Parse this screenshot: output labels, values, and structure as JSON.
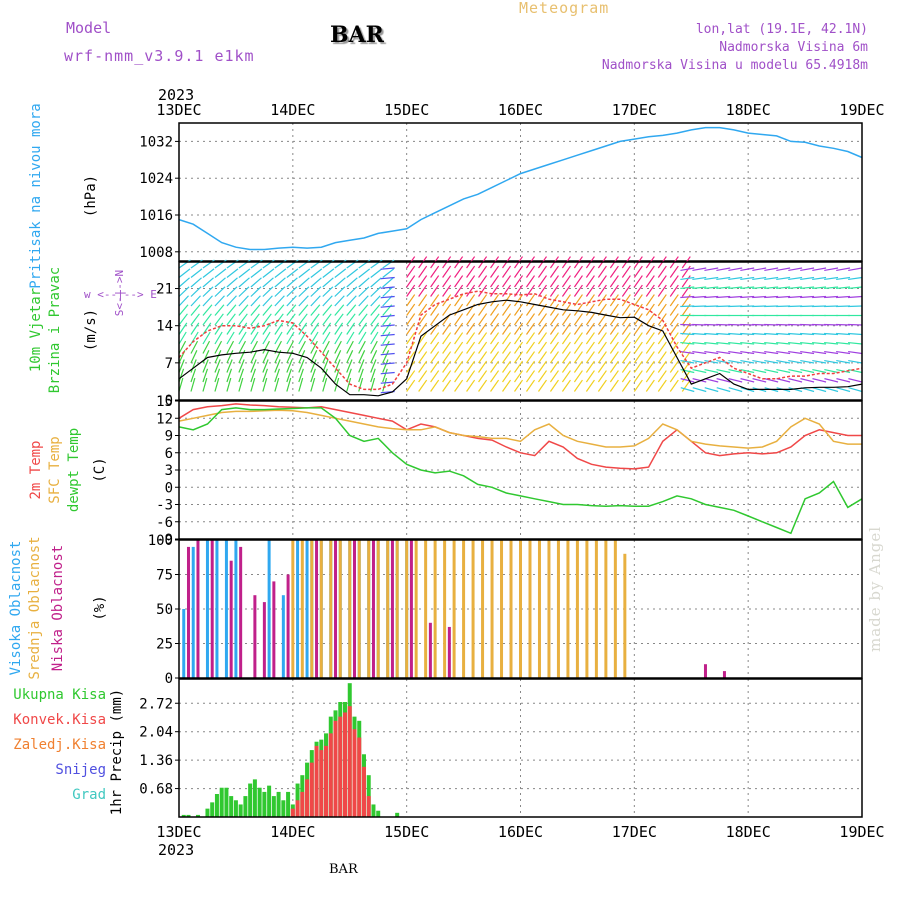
{
  "header": {
    "model_label": "Model",
    "model_name": "wrf-nmm_v3.9.1 e1km",
    "title": "Meteogram",
    "station": "BAR",
    "lonlat": "lon,lat (19.1E, 42.1N)",
    "altitude": "Nadmorska Visina 6m",
    "altitude_model": "Nadmorska Visina u modelu 65.4918m"
  },
  "footer": {
    "station": "BAR",
    "credit": "made by Angel"
  },
  "time_axis": {
    "year": "2023",
    "labels": [
      "13DEC",
      "14DEC",
      "15DEC",
      "16DEC",
      "17DEC",
      "18DEC",
      "19DEC"
    ],
    "range_hours": [
      0,
      144
    ]
  },
  "colors": {
    "pressure": "#30a8f0",
    "wind_speed": "#000000",
    "wind_gust": "#f04040",
    "temp_2m": "#f04848",
    "temp_sfc": "#e8b040",
    "dewpoint": "#30c830",
    "cloud_high": "#30a8f0",
    "cloud_mid": "#e8b040",
    "cloud_low": "#c0208a",
    "precip_total": "#30c830",
    "precip_conv": "#f04848",
    "precip_freezing": "#f08030",
    "precip_snow": "#5050e0",
    "precip_hail": "#40c8c0",
    "wind_purple": "#a050c8"
  },
  "chart_data": [
    {
      "type": "line",
      "name": "pressure",
      "ylabel_left": "Pritisak na nivou mora",
      "unit": "(hPa)",
      "ylim": [
        1006,
        1036
      ],
      "yticks": [
        1008,
        1016,
        1024,
        1032
      ],
      "grid": true,
      "series": [
        {
          "key": "pressure",
          "x": [
            0,
            3,
            6,
            9,
            12,
            15,
            18,
            21,
            24,
            27,
            30,
            33,
            36,
            39,
            42,
            45,
            48,
            51,
            54,
            57,
            60,
            63,
            66,
            69,
            72,
            75,
            78,
            81,
            84,
            87,
            90,
            93,
            96,
            99,
            102,
            105,
            108,
            111,
            114,
            117,
            120,
            123,
            126,
            129,
            132,
            135,
            138,
            141,
            144
          ],
          "values": [
            1015,
            1014,
            1012,
            1010,
            1009,
            1008.5,
            1008.5,
            1008.8,
            1009,
            1008.8,
            1009,
            1010,
            1010.5,
            1011,
            1012,
            1012.5,
            1013,
            1015,
            1016.5,
            1018,
            1019.5,
            1020.5,
            1022,
            1023.5,
            1025,
            1026,
            1027,
            1028,
            1029,
            1030,
            1031,
            1032,
            1032.5,
            1033,
            1033.3,
            1033.8,
            1034.5,
            1035,
            1035,
            1034.5,
            1033.8,
            1033.5,
            1033.2,
            1032,
            1031.8,
            1031,
            1030.5,
            1029.8,
            1028.5
          ]
        }
      ]
    },
    {
      "type": "line",
      "name": "wind",
      "ylabel_left": "10m Vjetar",
      "ylabel_left2": "Brzina i Pravac",
      "unit": "(m/s)",
      "compass": "w <--|--> E",
      "compass_side": "S<-|->N",
      "ylim": [
        0,
        26
      ],
      "yticks": [
        0,
        7,
        14,
        21
      ],
      "grid": true,
      "series": [
        {
          "key": "wind_speed",
          "x": [
            0,
            3,
            6,
            9,
            12,
            15,
            18,
            21,
            24,
            27,
            30,
            33,
            36,
            39,
            42,
            45,
            48,
            51,
            54,
            57,
            60,
            63,
            66,
            69,
            72,
            75,
            78,
            81,
            84,
            87,
            90,
            93,
            96,
            99,
            102,
            105,
            108,
            111,
            114,
            117,
            120,
            123,
            126,
            129,
            132,
            135,
            138,
            141,
            144
          ],
          "values": [
            4,
            6,
            8,
            8.5,
            8.8,
            9,
            9.5,
            9,
            8.8,
            8,
            6,
            3,
            1,
            1,
            0.8,
            1.5,
            4,
            12,
            14,
            16,
            17,
            18,
            18.5,
            18.8,
            18.5,
            18,
            17.5,
            17,
            16.8,
            16.5,
            16,
            15.5,
            15.6,
            14,
            13,
            8,
            3,
            4,
            5,
            3,
            2,
            2,
            2,
            2,
            2.3,
            2.4,
            2.4,
            2.5,
            3
          ]
        },
        {
          "key": "wind_gust",
          "x": [
            0,
            3,
            6,
            9,
            12,
            15,
            18,
            21,
            24,
            27,
            30,
            33,
            36,
            39,
            42,
            45,
            48,
            51,
            54,
            57,
            60,
            63,
            66,
            69,
            72,
            75,
            78,
            81,
            84,
            87,
            90,
            93,
            96,
            99,
            102,
            105,
            108,
            111,
            114,
            117,
            120,
            123,
            126,
            129,
            132,
            135,
            138,
            141,
            144
          ],
          "values": [
            8,
            11,
            13,
            14,
            14,
            13.5,
            14,
            15,
            14.5,
            12,
            9,
            6,
            3,
            2,
            2,
            3,
            7,
            16,
            18,
            19,
            20,
            20.5,
            20,
            20,
            19.8,
            20,
            19,
            18.5,
            18,
            18.5,
            19,
            19,
            18,
            17,
            15,
            10,
            6,
            7,
            8,
            6,
            5,
            4,
            4,
            4.5,
            4.5,
            5,
            5,
            5.5,
            6
          ]
        }
      ],
      "barbs_note": "dense multi-colored wind direction vectors"
    },
    {
      "type": "line",
      "name": "temperature",
      "ylabel_lines": [
        "2m Temp",
        "SFC Temp",
        "dewpt Temp"
      ],
      "unit": "(C)",
      "ylim": [
        -9,
        15
      ],
      "yticks": [
        -9,
        -6,
        -3,
        0,
        3,
        6,
        9,
        12,
        15
      ],
      "grid": true,
      "series": [
        {
          "key": "temp_2m",
          "x": [
            0,
            3,
            6,
            9,
            12,
            15,
            18,
            21,
            24,
            27,
            30,
            33,
            36,
            39,
            42,
            45,
            48,
            51,
            54,
            57,
            60,
            63,
            66,
            69,
            72,
            75,
            78,
            81,
            84,
            87,
            90,
            93,
            96,
            99,
            102,
            105,
            108,
            111,
            114,
            117,
            120,
            123,
            126,
            129,
            132,
            135,
            138,
            141,
            144
          ],
          "values": [
            12,
            13.5,
            14,
            14.2,
            14.5,
            14.3,
            14.2,
            14,
            13.9,
            13.8,
            14,
            13.5,
            13,
            12.5,
            12,
            11.5,
            10,
            11,
            10.5,
            9.5,
            9,
            8.5,
            8.2,
            7,
            6,
            5.5,
            8,
            7,
            5,
            4,
            3.5,
            3.3,
            3.2,
            3.5,
            8,
            10,
            8,
            6,
            5.5,
            5.8,
            6,
            5.8,
            6,
            7,
            9,
            10,
            9.5,
            9,
            9
          ]
        },
        {
          "key": "temp_sfc",
          "x": [
            0,
            3,
            6,
            9,
            12,
            15,
            18,
            21,
            24,
            27,
            30,
            33,
            36,
            39,
            42,
            45,
            48,
            51,
            54,
            57,
            60,
            63,
            66,
            69,
            72,
            75,
            78,
            81,
            84,
            87,
            90,
            93,
            96,
            99,
            102,
            105,
            108,
            111,
            114,
            117,
            120,
            123,
            126,
            129,
            132,
            135,
            138,
            141,
            144
          ],
          "values": [
            11.5,
            12,
            12.5,
            13,
            13.2,
            13.2,
            13.3,
            13.4,
            13.3,
            13,
            12.5,
            12,
            11.5,
            11,
            10.5,
            10.2,
            10,
            10,
            10.5,
            9.5,
            9,
            8.8,
            8.5,
            8.5,
            8,
            10,
            11,
            9,
            8,
            7.5,
            7,
            7,
            7.2,
            8.5,
            11,
            10,
            8,
            7.5,
            7.2,
            7,
            6.8,
            7,
            8,
            10.5,
            12,
            11,
            8,
            7.5,
            7.5
          ]
        },
        {
          "key": "dewpoint",
          "x": [
            0,
            3,
            6,
            9,
            12,
            15,
            18,
            21,
            24,
            27,
            30,
            33,
            36,
            39,
            42,
            45,
            48,
            51,
            54,
            57,
            60,
            63,
            66,
            69,
            72,
            75,
            78,
            81,
            84,
            87,
            90,
            93,
            96,
            99,
            102,
            105,
            108,
            111,
            114,
            117,
            120,
            123,
            126,
            129,
            132,
            135,
            138,
            141,
            144
          ],
          "values": [
            10.5,
            10,
            11,
            13.5,
            13.8,
            13.5,
            13.5,
            13.6,
            13.7,
            13.8,
            13.8,
            12,
            9,
            8,
            8.5,
            6,
            4,
            3,
            2.5,
            2.8,
            2,
            0.5,
            0,
            -1,
            -1.5,
            -2,
            -2.5,
            -3,
            -3,
            -3.2,
            -3.3,
            -3.2,
            -3.3,
            -3.3,
            -2.5,
            -1.5,
            -2,
            -3,
            -3.5,
            -4,
            -5,
            -6,
            -7,
            -8,
            -2,
            -1,
            1,
            -3.5,
            -2
          ]
        }
      ]
    },
    {
      "type": "bar",
      "name": "cloud_cover",
      "ylabel_lines": [
        "Visoka Oblacnost",
        "Srednja Oblacnost",
        "Niska Oblacnost"
      ],
      "unit": "(%)",
      "ylim": [
        0,
        100
      ],
      "yticks": [
        0,
        25,
        50,
        75,
        100
      ],
      "grid": true,
      "series": [
        {
          "key": "cloud_high",
          "x": [
            1,
            3,
            6,
            8,
            10,
            12,
            19,
            22,
            25,
            27,
            28,
            30,
            32,
            34,
            36,
            38,
            40,
            42,
            44,
            46,
            48
          ],
          "values": [
            50,
            95,
            100,
            100,
            100,
            100,
            100,
            60,
            100,
            100,
            100,
            100,
            100,
            100,
            100,
            100,
            100,
            100,
            100,
            100,
            100
          ]
        },
        {
          "key": "cloud_mid",
          "x": [
            24,
            26,
            28,
            30,
            32,
            34,
            36,
            38,
            40,
            42,
            44,
            46,
            48,
            50,
            52,
            54,
            56,
            58,
            60,
            62,
            64,
            66,
            68,
            70,
            72,
            74,
            76,
            78,
            80,
            82,
            84,
            86,
            88,
            90,
            92,
            94
          ],
          "values": [
            100,
            100,
            100,
            100,
            100,
            100,
            100,
            100,
            100,
            100,
            100,
            100,
            100,
            100,
            100,
            100,
            100,
            100,
            100,
            100,
            100,
            100,
            100,
            100,
            100,
            100,
            100,
            100,
            100,
            100,
            100,
            100,
            100,
            100,
            100,
            90
          ]
        },
        {
          "key": "cloud_low",
          "x": [
            2,
            4,
            7,
            11,
            13,
            16,
            18,
            20,
            23,
            29,
            33,
            37,
            41,
            45,
            49,
            53,
            57,
            111,
            115
          ],
          "values": [
            95,
            100,
            100,
            85,
            95,
            60,
            55,
            70,
            75,
            100,
            100,
            100,
            100,
            100,
            100,
            40,
            37,
            10,
            5
          ]
        }
      ]
    },
    {
      "type": "bar",
      "name": "precipitation",
      "ylabel_lines": [
        "Ukupna Kisa",
        "Konvek.Kisa",
        "Zaledj.Kisa",
        "Snijeg",
        "Grad"
      ],
      "unit": "1hr Precip (mm)",
      "ylim": [
        0,
        3.3
      ],
      "yticks": [
        0.68,
        1.36,
        2.04,
        2.72
      ],
      "ytick_labels": [
        "0.68",
        "1.36",
        "2.04",
        "2.72"
      ],
      "grid": true,
      "series": [
        {
          "key": "precip_total",
          "x": [
            1,
            2,
            4,
            6,
            7,
            8,
            9,
            10,
            11,
            12,
            13,
            14,
            15,
            16,
            17,
            18,
            19,
            20,
            21,
            22,
            23,
            24,
            25,
            26,
            27,
            28,
            29,
            30,
            31,
            32,
            33,
            34,
            35,
            36,
            37,
            38,
            39,
            40,
            41,
            42,
            46
          ],
          "values": [
            0.05,
            0.05,
            0.05,
            0.2,
            0.35,
            0.55,
            0.7,
            0.7,
            0.5,
            0.4,
            0.3,
            0.5,
            0.8,
            0.9,
            0.7,
            0.6,
            0.75,
            0.5,
            0.6,
            0.4,
            0.6,
            0.3,
            0.8,
            1.0,
            1.3,
            1.6,
            1.8,
            1.85,
            2.0,
            2.4,
            2.55,
            2.75,
            2.75,
            3.2,
            2.4,
            2.3,
            1.5,
            1.0,
            0.3,
            0.15,
            0.1
          ]
        },
        {
          "key": "precip_conv",
          "x": [
            24,
            25,
            26,
            27,
            28,
            29,
            30,
            31,
            32,
            33,
            34,
            35,
            36,
            37,
            38,
            39,
            40
          ],
          "values": [
            0.2,
            0.4,
            0.6,
            0.9,
            1.3,
            1.7,
            1.6,
            1.7,
            2.0,
            2.3,
            2.4,
            2.5,
            2.65,
            2.1,
            1.9,
            1.2,
            0.5
          ]
        }
      ]
    }
  ]
}
